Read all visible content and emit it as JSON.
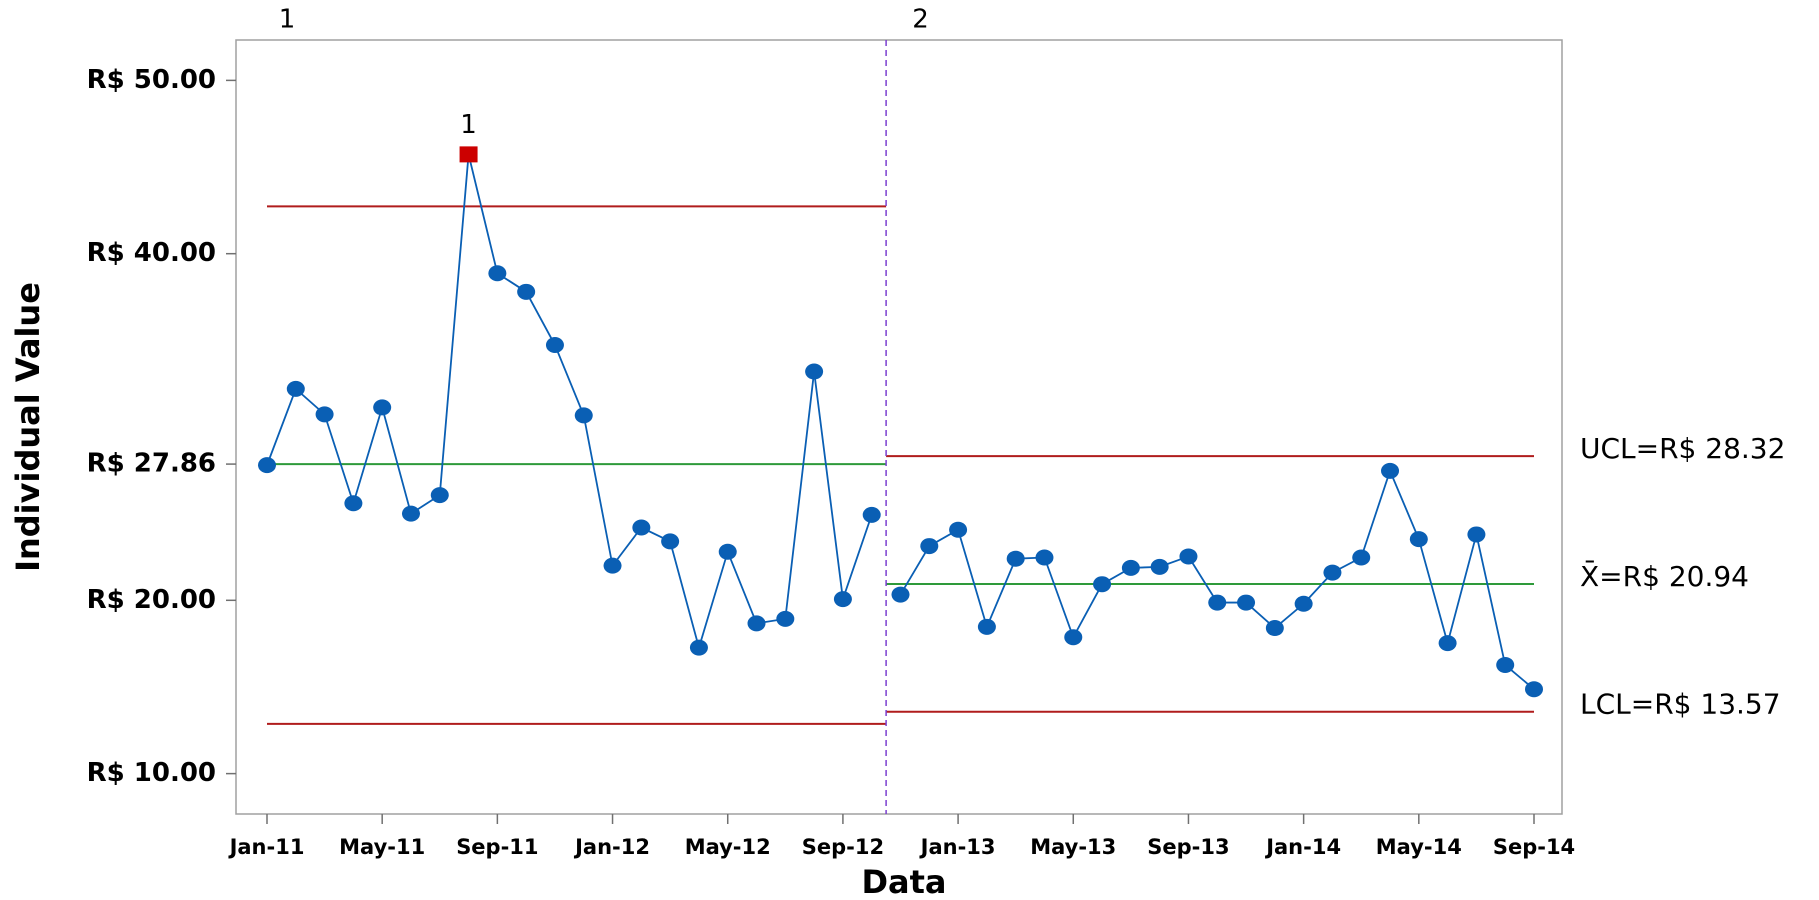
{
  "chart_data": {
    "type": "control",
    "x_label": "Data",
    "y_label": "Individual Value",
    "categories": [
      "Jan-11",
      null,
      null,
      null,
      "May-11",
      null,
      null,
      null,
      "Sep-11",
      null,
      null,
      null,
      "Jan-12",
      null,
      null,
      null,
      "May-12",
      null,
      null,
      null,
      "Sep-12",
      null,
      null,
      null,
      "Jan-13",
      null,
      null,
      null,
      "May-13",
      null,
      null,
      null,
      "Sep-13",
      null,
      null,
      null,
      "Jan-14",
      null,
      null,
      null,
      "May-14",
      null,
      null,
      null,
      "Sep-14"
    ],
    "series": [
      {
        "color": "#0a5fb4",
        "flag_color": "#cc0000",
        "values": [
          27.8,
          32.2,
          30.73,
          25.6,
          31.13,
          25.0,
          26.07,
          45.73,
          38.87,
          37.8,
          34.73,
          30.67,
          22.0,
          24.2,
          23.4,
          17.27,
          22.8,
          18.67,
          18.93,
          33.2,
          20.07,
          24.93,
          null,
          null,
          null,
          null,
          null,
          null,
          null,
          null,
          null,
          null,
          null,
          null,
          null,
          null,
          null,
          null,
          null,
          null,
          null,
          null,
          null,
          null,
          null
        ],
        "flags": [
          null,
          null,
          null,
          null,
          null,
          null,
          null,
          "1",
          null,
          null,
          null,
          null,
          null,
          null,
          null,
          null,
          null,
          null,
          null,
          null,
          null,
          null,
          null,
          null,
          null,
          null,
          null,
          null,
          null,
          null,
          null,
          null,
          null,
          null,
          null,
          null,
          null,
          null,
          null,
          null,
          null,
          null,
          null,
          null,
          null
        ]
      },
      {
        "color": "#0a5fb4",
        "values": [
          null,
          null,
          null,
          null,
          null,
          null,
          null,
          null,
          null,
          null,
          null,
          null,
          null,
          null,
          null,
          null,
          null,
          null,
          null,
          null,
          null,
          null,
          20.33,
          23.13,
          24.07,
          18.47,
          22.4,
          22.47,
          17.87,
          20.93,
          21.87,
          21.93,
          22.53,
          19.87,
          19.87,
          18.4,
          19.8,
          21.6,
          22.47,
          27.47,
          23.53,
          17.53,
          23.8,
          16.27,
          14.87
        ]
      }
    ],
    "phases": [
      {
        "label": "1",
        "ucl": 42.73,
        "center": 27.86,
        "lcl": 12.87
      },
      {
        "label": "2",
        "ucl": 28.32,
        "center": 20.94,
        "lcl": 13.57,
        "ucl_label": "UCL=R$ 28.32",
        "center_label": "X̄=R$ 20.94",
        "lcl_label": "LCL=R$ 13.57"
      }
    ],
    "limit_color": "#b01c1c",
    "center_color": "#2e9a3a",
    "phase_line_color": "#7b3fd0",
    "ylim": [
      7.67,
      52.33
    ],
    "yticks": [
      {
        "value": 10,
        "label": "R$ 10.00"
      },
      {
        "value": 20,
        "label": "R$ 20.00"
      },
      {
        "value": 27.86,
        "label": "R$ 27.86"
      },
      {
        "value": 40,
        "label": "R$ 40.00"
      },
      {
        "value": 50,
        "label": "R$ 50.00"
      }
    ]
  }
}
